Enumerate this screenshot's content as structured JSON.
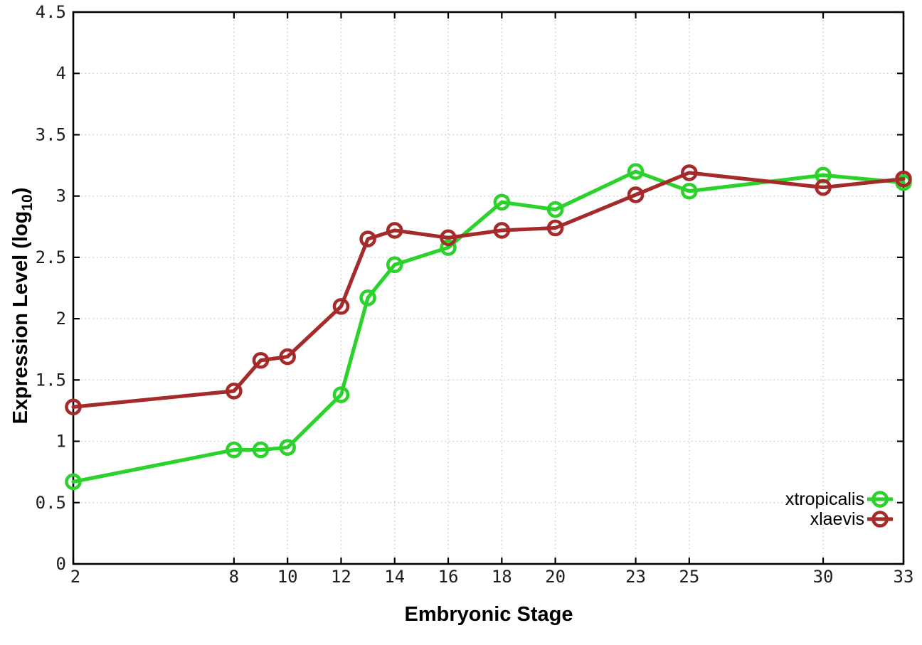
{
  "chart_data": {
    "type": "line",
    "title": "",
    "xlabel": "Embryonic Stage",
    "ylabel_parts": {
      "main": "Expression Level (log",
      "sub": "10",
      "end": ")"
    },
    "xlim": [
      2,
      33
    ],
    "ylim": [
      0,
      4.5
    ],
    "grid": true,
    "legend_position": "bottom-right",
    "x": [
      2,
      8,
      9,
      10,
      12,
      13,
      14,
      16,
      18,
      20,
      23,
      25,
      30,
      33
    ],
    "x_ticks": [
      2,
      8,
      10,
      12,
      14,
      16,
      18,
      20,
      23,
      25,
      30,
      33
    ],
    "x_tick_labels": [
      "2",
      "8",
      "10",
      "12",
      "14",
      "16",
      "18",
      "20",
      "23",
      "25",
      "30",
      "33"
    ],
    "y_ticks": [
      0,
      0.5,
      1,
      1.5,
      2,
      2.5,
      3,
      3.5,
      4,
      4.5
    ],
    "y_tick_labels": [
      "0",
      "0.5",
      "1",
      "1.5",
      "2",
      "2.5",
      "3",
      "3.5",
      "4",
      "4.5"
    ],
    "series": [
      {
        "name": "xtropicalis",
        "color": "#2bd22b",
        "marker": "open-circle",
        "values": [
          0.67,
          0.93,
          0.93,
          0.95,
          1.38,
          2.17,
          2.44,
          2.58,
          2.95,
          2.89,
          3.2,
          3.04,
          3.17,
          3.11
        ]
      },
      {
        "name": "xlaevis",
        "color": "#a52a2a",
        "marker": "open-circle",
        "values": [
          1.28,
          1.41,
          1.66,
          1.69,
          2.1,
          2.65,
          2.72,
          2.66,
          2.72,
          2.74,
          3.01,
          3.19,
          3.07,
          3.14
        ]
      }
    ],
    "colors": {
      "background": "#ffffff",
      "border": "#000000",
      "grid": "#c8c8c8",
      "tick_text": "#1c1c1c"
    }
  }
}
